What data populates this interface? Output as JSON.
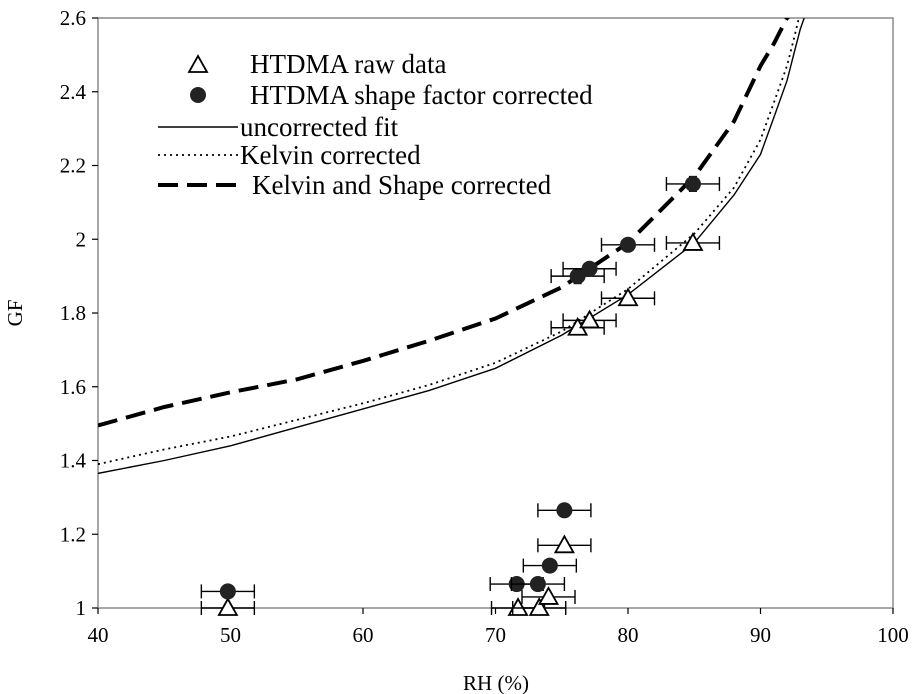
{
  "chart_data": {
    "type": "scatter",
    "xlabel": "RH (%)",
    "ylabel": "GF",
    "xlim": [
      40,
      100
    ],
    "ylim": [
      1,
      2.6
    ],
    "x_ticks": [
      "40",
      "50",
      "60",
      "70",
      "80",
      "90",
      "100"
    ],
    "y_ticks": [
      "1",
      "1.2",
      "1.4",
      "1.6",
      "1.8",
      "2",
      "2.2",
      "2.4",
      "2.6"
    ],
    "grid": false,
    "legend_position": "top-left",
    "series": [
      {
        "name": "HTDMA raw data",
        "kind": "points",
        "marker": "open-triangle",
        "points": [
          {
            "x": 49.8,
            "y": 1.0,
            "xerr": 2.0
          },
          {
            "x": 71.7,
            "y": 1.0,
            "xerr": 2.0
          },
          {
            "x": 73.3,
            "y": 1.0,
            "xerr": 2.0
          },
          {
            "x": 74.0,
            "y": 1.03,
            "xerr": 2.0
          },
          {
            "x": 75.2,
            "y": 1.17,
            "xerr": 2.0
          },
          {
            "x": 76.2,
            "y": 1.76,
            "xerr": 2.0
          },
          {
            "x": 77.1,
            "y": 1.78,
            "xerr": 2.0
          },
          {
            "x": 80.0,
            "y": 1.84,
            "xerr": 2.0
          },
          {
            "x": 84.9,
            "y": 1.99,
            "xerr": 2.0
          }
        ]
      },
      {
        "name": "HTDMA shape factor corrected",
        "kind": "points",
        "marker": "filled-circle",
        "points": [
          {
            "x": 49.8,
            "y": 1.045,
            "xerr": 2.0,
            "yerr": 0.015
          },
          {
            "x": 71.6,
            "y": 1.065,
            "xerr": 2.0,
            "yerr": 0.015
          },
          {
            "x": 73.2,
            "y": 1.065,
            "xerr": 2.0,
            "yerr": 0.015
          },
          {
            "x": 74.1,
            "y": 1.115,
            "xerr": 2.0,
            "yerr": 0.015
          },
          {
            "x": 75.2,
            "y": 1.265,
            "xerr": 2.0,
            "yerr": 0.015
          },
          {
            "x": 76.2,
            "y": 1.9,
            "xerr": 2.0,
            "yerr": 0.02
          },
          {
            "x": 77.1,
            "y": 1.92,
            "xerr": 2.0,
            "yerr": 0.015
          },
          {
            "x": 80.0,
            "y": 1.985,
            "xerr": 2.0,
            "yerr": 0.015
          },
          {
            "x": 84.9,
            "y": 2.15,
            "xerr": 2.0,
            "yerr": 0.02
          }
        ]
      },
      {
        "name": "uncorrected fit",
        "kind": "line",
        "style": "solid",
        "x": [
          40,
          45,
          50,
          55,
          60,
          65,
          70,
          75,
          80,
          85,
          88,
          90,
          91,
          92,
          92.5,
          93,
          93.3
        ],
        "values": [
          1.365,
          1.4,
          1.44,
          1.49,
          1.54,
          1.59,
          1.65,
          1.74,
          1.85,
          1.99,
          2.12,
          2.23,
          2.33,
          2.43,
          2.5,
          2.57,
          2.6
        ]
      },
      {
        "name": "Kelvin corrected",
        "kind": "line",
        "style": "dotted",
        "x": [
          40,
          45,
          50,
          55,
          60,
          65,
          70,
          75,
          80,
          85,
          88,
          90,
          91,
          92,
          92.5,
          92.9
        ],
        "values": [
          1.39,
          1.43,
          1.465,
          1.51,
          1.555,
          1.605,
          1.665,
          1.75,
          1.865,
          2.015,
          2.14,
          2.27,
          2.37,
          2.47,
          2.54,
          2.6
        ]
      },
      {
        "name": "Kelvin and Shape corrected",
        "kind": "line",
        "style": "dashed",
        "x": [
          40,
          45,
          50,
          55,
          60,
          65,
          70,
          75,
          80,
          85,
          88,
          90,
          91,
          92,
          92.3
        ],
        "values": [
          1.495,
          1.545,
          1.585,
          1.62,
          1.67,
          1.725,
          1.785,
          1.87,
          1.99,
          2.17,
          2.32,
          2.47,
          2.53,
          2.6,
          2.61
        ]
      }
    ]
  }
}
